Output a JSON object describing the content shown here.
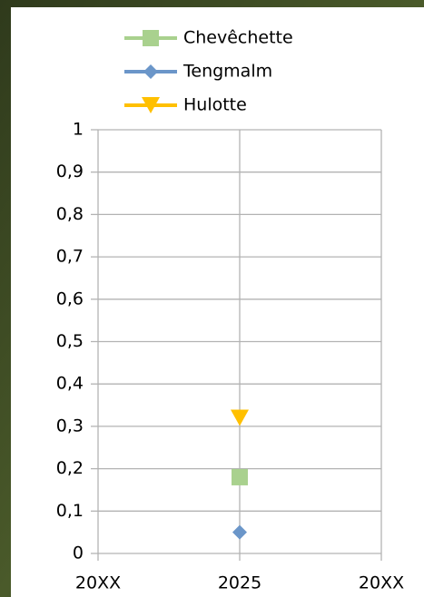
{
  "chart_data": {
    "type": "line",
    "categories": [
      "20XX",
      "2025",
      "20XX"
    ],
    "series": [
      {
        "name": "Chevêchette",
        "color": "#a9d18e",
        "marker": "square",
        "values": [
          null,
          0.18,
          null
        ]
      },
      {
        "name": "Tengmalm",
        "color": "#6b96c9",
        "marker": "diamond",
        "values": [
          null,
          0.05,
          null
        ]
      },
      {
        "name": "Hulotte",
        "color": "#ffc000",
        "marker": "triangle-down",
        "values": [
          null,
          0.32,
          null
        ]
      }
    ],
    "ylim": [
      0,
      1
    ],
    "yticks": [
      0,
      {
        "value": 0.1,
        "label": "0,1"
      },
      {
        "value": 0.2,
        "label": "0,2"
      },
      {
        "value": 0.3,
        "label": "0,3"
      },
      {
        "value": 0.4,
        "label": "0,4"
      },
      {
        "value": 0.5,
        "label": "0,5"
      },
      {
        "value": 0.6,
        "label": "0,6"
      },
      {
        "value": 0.7,
        "label": "0,7"
      },
      {
        "value": 0.8,
        "label": "0,8"
      },
      {
        "value": 0.9,
        "label": "0,9"
      },
      1
    ],
    "grid": true,
    "legend": "top"
  }
}
